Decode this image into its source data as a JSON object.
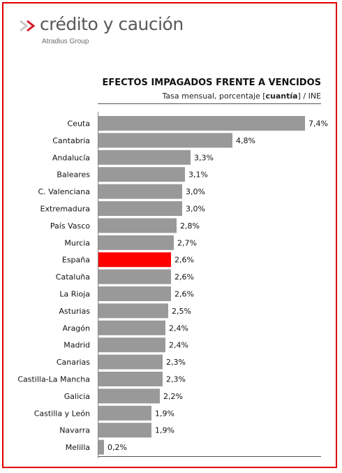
{
  "brand": {
    "name": "crédito y caución",
    "group": "Atradius Group",
    "colors": {
      "mark_red": "#d4192a",
      "text_gray": "#58585a"
    }
  },
  "chart_data": {
    "type": "bar",
    "orientation": "horizontal",
    "title": "EFECTOS IMPAGADOS FRENTE A VENCIDOS",
    "subtitle": {
      "before": "Tasa mensual,  porcentaje [",
      "bold": "cuantía",
      "after": "]  / INE"
    },
    "categories": [
      "Ceuta",
      "Cantabria",
      "Andalucía",
      "Baleares",
      "C. Valenciana",
      "Extremadura",
      "País Vasco",
      "Murcia",
      "España",
      "Cataluña",
      "La Rioja",
      "Asturias",
      "Aragón",
      "Madrid",
      "Canarias",
      "Castilla-La Mancha",
      "Galicia",
      "Castilla y León",
      "Navarra",
      "Melilla"
    ],
    "values": [
      7.4,
      4.8,
      3.3,
      3.1,
      3.0,
      3.0,
      2.8,
      2.7,
      2.6,
      2.6,
      2.6,
      2.5,
      2.4,
      2.4,
      2.3,
      2.3,
      2.2,
      1.9,
      1.9,
      0.2
    ],
    "value_labels": [
      "7,4%",
      "4,8%",
      "3,3%",
      "3,1%",
      "3,0%",
      "3,0%",
      "2,8%",
      "2,7%",
      "2,6%",
      "2,6%",
      "2,6%",
      "2,5%",
      "2,4%",
      "2,4%",
      "2,3%",
      "2,3%",
      "2,2%",
      "1,9%",
      "1,9%",
      "0,2%"
    ],
    "highlight": "España",
    "colors": {
      "bar": "#999999",
      "highlight": "#ff0000"
    },
    "xlim": [
      0,
      7.4
    ],
    "grid": false,
    "legend": "none"
  }
}
